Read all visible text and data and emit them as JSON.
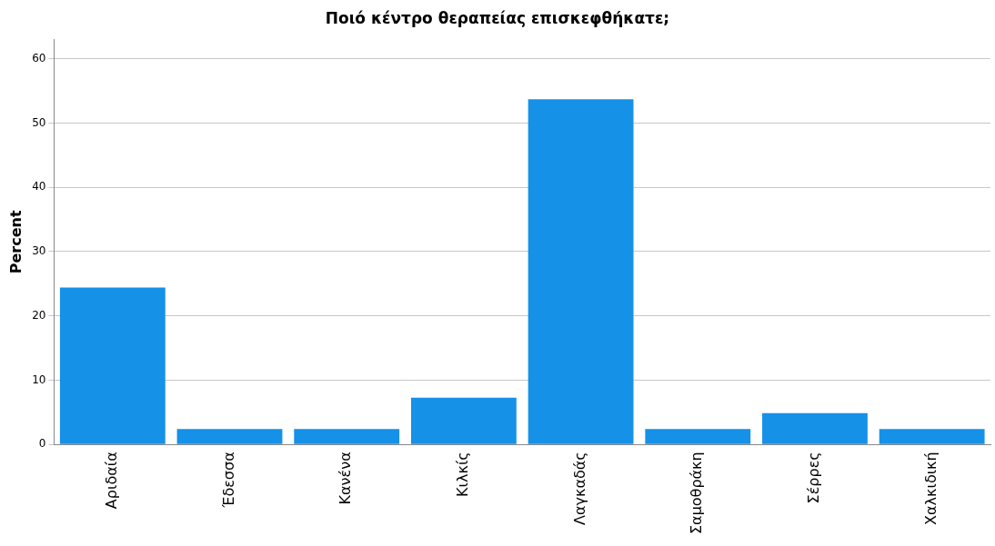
{
  "chart_data": {
    "type": "bar",
    "title": "Ποιό κέντρο θεραπείας επισκεφθήκατε;",
    "ylabel": "Percent",
    "categories": [
      "Αριδαία",
      "Έδεσσα",
      "Κανένα",
      "Κιλκίς",
      "Λαγκαδάς",
      "Σαμοθράκη",
      "Σέρρες",
      "Χαλκιδική"
    ],
    "values": [
      24.4,
      2.4,
      2.4,
      7.3,
      53.7,
      2.4,
      4.9,
      2.4
    ],
    "color": "#1591e8",
    "ylim": [
      0,
      63
    ],
    "yticks": [
      0,
      10,
      20,
      30,
      40,
      50,
      60
    ],
    "grid": "y",
    "legend": false
  }
}
